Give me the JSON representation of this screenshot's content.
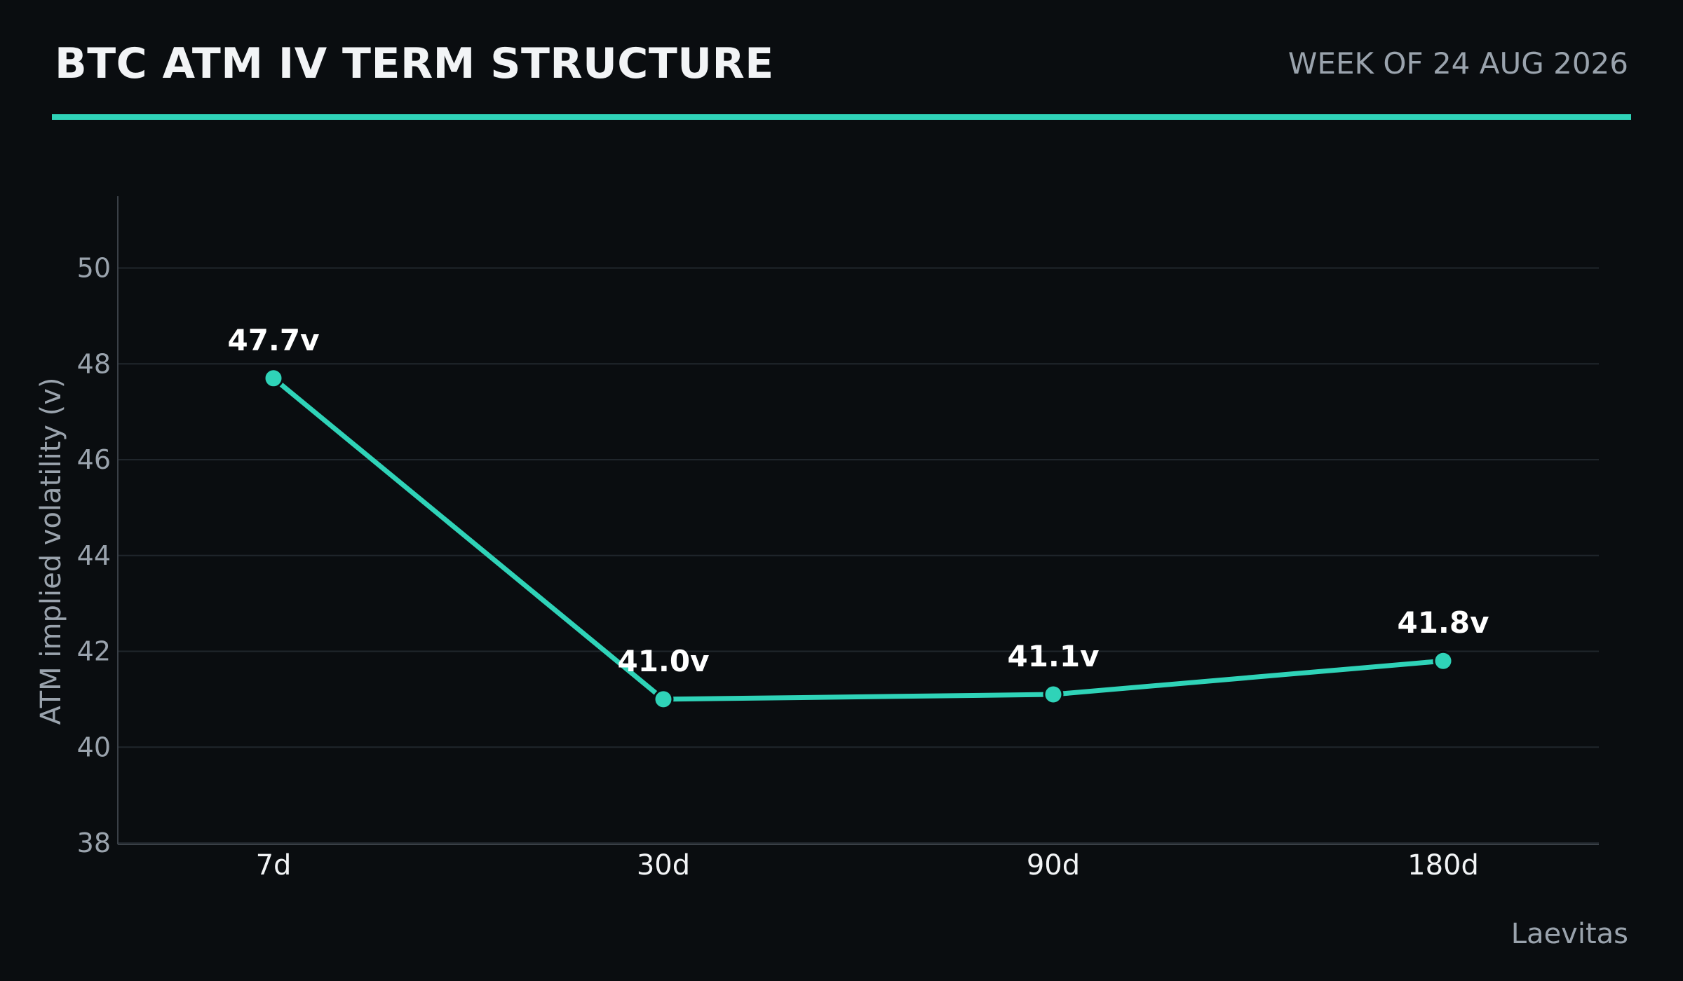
{
  "header": {
    "title": "BTC ATM IV TERM STRUCTURE",
    "date": "WEEK OF 24 AUG 2026"
  },
  "footer": {
    "source": "Laevitas"
  },
  "colors": {
    "accent": "#2fd3b8",
    "background": "#0a0d10",
    "grid": "#20262c",
    "muted": "#9aa3ad"
  },
  "chart_data": {
    "type": "line",
    "title": "BTC ATM IV TERM STRUCTURE",
    "xlabel": "",
    "ylabel": "ATM implied volatility (v)",
    "categories": [
      "7d",
      "30d",
      "90d",
      "180d"
    ],
    "series": [
      {
        "values": [
          47.7,
          41.0,
          41.1,
          41.8
        ]
      }
    ],
    "data_labels": [
      "47.7v",
      "41.0v",
      "41.1v",
      "41.8v"
    ],
    "ylim": [
      38,
      51.5
    ],
    "yticks": [
      38,
      40,
      42,
      44,
      46,
      48,
      50
    ],
    "grid": true,
    "legend": "none"
  }
}
